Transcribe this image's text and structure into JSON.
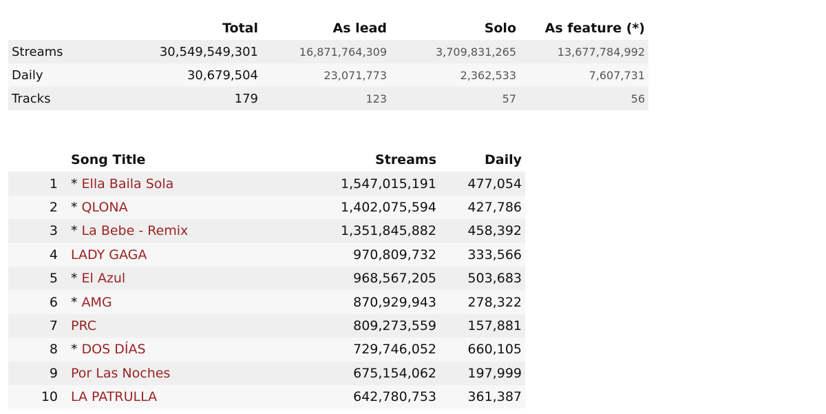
{
  "summary": {
    "headers": [
      "",
      "Total",
      "As lead",
      "Solo",
      "As feature (*)"
    ],
    "rows": [
      {
        "label": "Streams",
        "total": "30,549,549,301",
        "lead": "16,871,764,309",
        "solo": "3,709,831,265",
        "feature": "13,677,784,992"
      },
      {
        "label": "Daily",
        "total": "30,679,504",
        "lead": "23,071,773",
        "solo": "2,362,533",
        "feature": "7,607,731"
      },
      {
        "label": "Tracks",
        "total": "179",
        "lead": "123",
        "solo": "57",
        "feature": "56"
      }
    ]
  },
  "songs": {
    "headers": {
      "rank": "",
      "title": "Song Title",
      "streams": "Streams",
      "daily": "Daily"
    },
    "rows": [
      {
        "rank": "1",
        "marker": "*",
        "title": "Ella Baila Sola",
        "streams": "1,547,015,191",
        "daily": "477,054"
      },
      {
        "rank": "2",
        "marker": "*",
        "title": "QLONA",
        "streams": "1,402,075,594",
        "daily": "427,786"
      },
      {
        "rank": "3",
        "marker": "*",
        "title": "La Bebe - Remix",
        "streams": "1,351,845,882",
        "daily": "458,392"
      },
      {
        "rank": "4",
        "marker": "",
        "title": "LADY GAGA",
        "streams": "970,809,732",
        "daily": "333,566"
      },
      {
        "rank": "5",
        "marker": "*",
        "title": "El Azul",
        "streams": "968,567,205",
        "daily": "503,683"
      },
      {
        "rank": "6",
        "marker": "*",
        "title": "AMG",
        "streams": "870,929,943",
        "daily": "278,322"
      },
      {
        "rank": "7",
        "marker": "",
        "title": "PRC",
        "streams": "809,273,559",
        "daily": "157,881"
      },
      {
        "rank": "8",
        "marker": "*",
        "title": "DOS DÍAS",
        "streams": "729,746,052",
        "daily": "660,105"
      },
      {
        "rank": "9",
        "marker": "",
        "title": "Por Las Noches",
        "streams": "675,154,062",
        "daily": "197,999"
      },
      {
        "rank": "10",
        "marker": "",
        "title": "LA PATRULLA",
        "streams": "642,780,753",
        "daily": "361,387"
      }
    ]
  },
  "colors": {
    "link": "#9b2222",
    "row_odd": "#efefef",
    "row_even": "#f7f7f7"
  }
}
